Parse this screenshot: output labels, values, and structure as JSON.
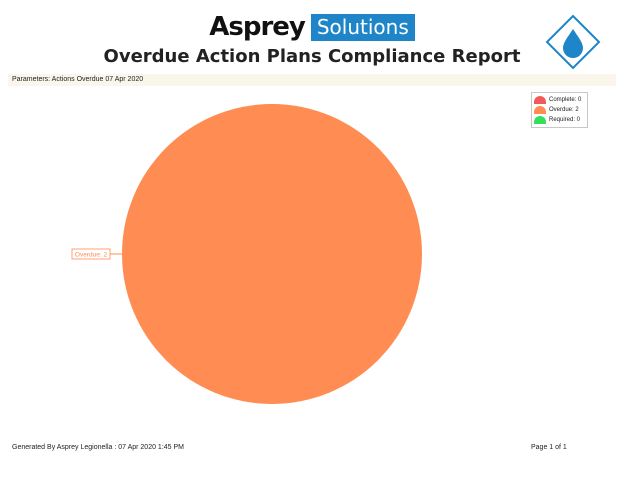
{
  "header": {
    "brand_name": "Asprey",
    "brand_tag": "Solutions",
    "title": "Overdue Action Plans Compliance Report",
    "logo_icon": "water-drop-icon"
  },
  "parameters": "Parameters: Actions Overdue 07 Apr 2020",
  "chart_data": {
    "type": "pie",
    "categories": [
      "Complete",
      "Overdue",
      "Required"
    ],
    "values": [
      0,
      2,
      0
    ],
    "colors": [
      "#f2595b",
      "#ff8c52",
      "#33e05a"
    ],
    "legend": {
      "placement": "top-right",
      "entries": [
        "Complete: 0",
        "Overdue: 2",
        "Required: 0"
      ]
    },
    "data_labels": [
      "",
      "Overdue: 2",
      ""
    ]
  },
  "footer": {
    "generated": "Generated By Asprey Legionella :  07 Apr 2020 1:45 PM",
    "page": "Page 1 of 1"
  }
}
